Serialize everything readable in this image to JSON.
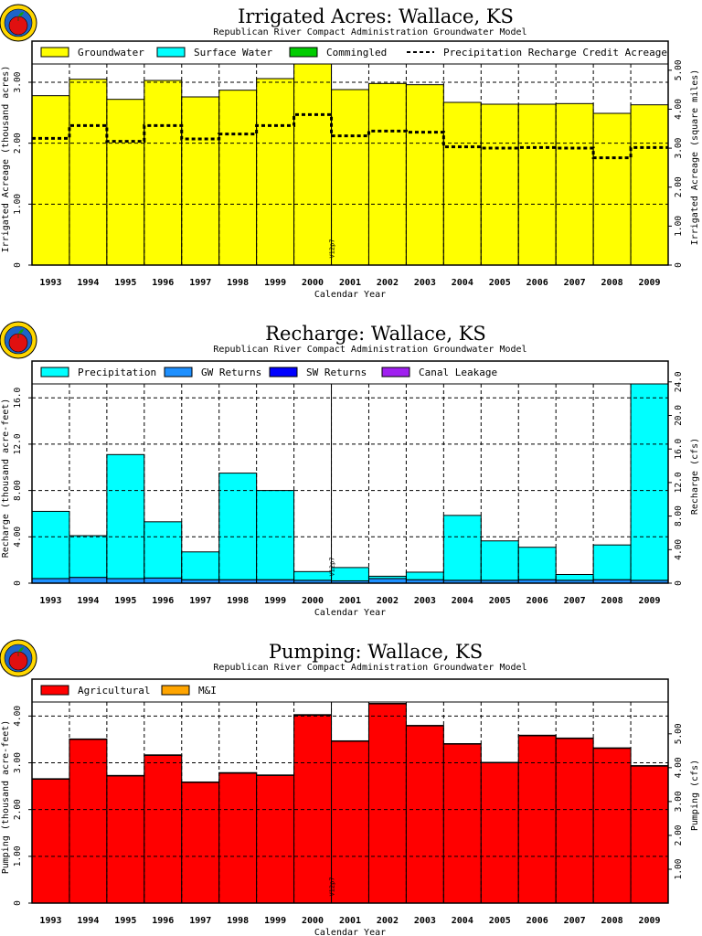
{
  "years": [
    "1993",
    "1994",
    "1995",
    "1996",
    "1997",
    "1998",
    "1999",
    "2000",
    "2001",
    "2002",
    "2003",
    "2004",
    "2005",
    "2006",
    "2007",
    "2008",
    "2009"
  ],
  "xlabel": "Calendar Year",
  "subtitle": "Republican River Compact Administration Groundwater Model",
  "annotation": "V12p7",
  "chart_data": [
    {
      "type": "bar",
      "title": "Irrigated Acres: Wallace, KS",
      "subtitle": "Republican River Compact Administration Groundwater Model",
      "xlabel": "Calendar Year",
      "ylabel": "Irrigated Acreage (thousand acres)",
      "y2label": "Irrigated Acreage (square miles)",
      "ylim": [
        0,
        3.3
      ],
      "yticks": [
        "0",
        "1.00",
        "2.00",
        "3.00"
      ],
      "y2lim": [
        0,
        5.16
      ],
      "y2ticks": [
        "0",
        "1.00",
        "2.00",
        "3.00",
        "4.00",
        "5.00"
      ],
      "legend": [
        {
          "name": "Groundwater",
          "color": "#ffff00",
          "kind": "box"
        },
        {
          "name": "Surface Water",
          "color": "#00ffff",
          "kind": "box"
        },
        {
          "name": "Commingled",
          "color": "#00cc00",
          "kind": "box"
        },
        {
          "name": "Precipitation Recharge Credit Acreage",
          "color": "#000000",
          "kind": "dash"
        }
      ],
      "series": [
        {
          "name": "Groundwater",
          "color": "#ffff00",
          "values": [
            2.78,
            3.05,
            2.72,
            3.03,
            2.76,
            2.87,
            3.06,
            3.3,
            2.88,
            2.98,
            2.96,
            2.67,
            2.64,
            2.64,
            2.65,
            2.49,
            2.63
          ]
        },
        {
          "name": "Surface Water",
          "color": "#00ffff",
          "values": [
            0,
            0,
            0,
            0,
            0,
            0,
            0,
            0,
            0,
            0,
            0,
            0,
            0,
            0,
            0,
            0,
            0
          ]
        },
        {
          "name": "Commingled",
          "color": "#00cc00",
          "values": [
            0,
            0,
            0,
            0,
            0,
            0,
            0,
            0,
            0,
            0,
            0,
            0,
            0,
            0,
            0,
            0,
            0
          ]
        }
      ],
      "line_series": {
        "name": "Precipitation Recharge Credit Acreage",
        "values": [
          2.08,
          2.29,
          2.03,
          2.29,
          2.07,
          2.15,
          2.29,
          2.47,
          2.12,
          2.2,
          2.18,
          1.94,
          1.92,
          1.93,
          1.92,
          1.76,
          1.93
        ]
      }
    },
    {
      "type": "bar",
      "title": "Recharge: Wallace, KS",
      "subtitle": "Republican River Compact Administration Groundwater Model",
      "xlabel": "Calendar Year",
      "ylabel": "Recharge (thousand acre-feet)",
      "y2label": "Recharge (cfs)",
      "ylim": [
        0,
        17.2
      ],
      "yticks": [
        "0",
        "4.00",
        "8.00",
        "12.0",
        "16.0"
      ],
      "y2lim": [
        0,
        23.76
      ],
      "y2ticks": [
        "0",
        "4.00",
        "8.00",
        "12.0",
        "16.0",
        "20.0",
        "24.0"
      ],
      "legend": [
        {
          "name": "Precipitation",
          "color": "#00ffff",
          "kind": "box"
        },
        {
          "name": "GW Returns",
          "color": "#1e90ff",
          "kind": "box"
        },
        {
          "name": "SW Returns",
          "color": "#0000ff",
          "kind": "box"
        },
        {
          "name": "Canal Leakage",
          "color": "#a020f0",
          "kind": "box"
        }
      ],
      "series": [
        {
          "name": "GW Returns",
          "color": "#1e90ff",
          "values": [
            0.4,
            0.5,
            0.4,
            0.45,
            0.3,
            0.3,
            0.3,
            0.25,
            0.2,
            0.4,
            0.3,
            0.25,
            0.25,
            0.3,
            0.25,
            0.3,
            0.25
          ]
        },
        {
          "name": "SW Returns",
          "color": "#0000ff",
          "values": [
            0,
            0,
            0,
            0,
            0,
            0,
            0,
            0,
            0,
            0,
            0,
            0,
            0,
            0,
            0,
            0,
            0
          ]
        },
        {
          "name": "Canal Leakage",
          "color": "#a020f0",
          "values": [
            0,
            0,
            0,
            0,
            0,
            0,
            0,
            0,
            0,
            0,
            0,
            0,
            0,
            0,
            0,
            0,
            0
          ]
        },
        {
          "name": "Precipitation",
          "color": "#00ffff",
          "values": [
            5.8,
            3.6,
            10.7,
            4.85,
            2.4,
            9.2,
            7.7,
            0.75,
            1.15,
            0.2,
            0.65,
            5.6,
            3.4,
            2.8,
            0.5,
            3.0,
            17.0
          ]
        }
      ]
    },
    {
      "type": "bar",
      "title": "Pumping: Wallace, KS",
      "subtitle": "Republican River Compact Administration Groundwater Model",
      "xlabel": "Calendar Year",
      "ylabel": "Pumping (thousand acre-feet)",
      "y2label": "Pumping (cfs)",
      "ylim": [
        0,
        4.3
      ],
      "yticks": [
        "0",
        "1.00",
        "2.00",
        "3.00",
        "4.00"
      ],
      "y2lim": [
        0,
        5.94
      ],
      "y2ticks": [
        "1.00",
        "2.00",
        "3.00",
        "4.00",
        "5.00"
      ],
      "legend": [
        {
          "name": "Agricultural",
          "color": "#ff0000",
          "kind": "box"
        },
        {
          "name": "M&I",
          "color": "#ffa500",
          "kind": "box"
        }
      ],
      "series": [
        {
          "name": "Agricultural",
          "color": "#ff0000",
          "values": [
            2.65,
            3.5,
            2.72,
            3.16,
            2.58,
            2.78,
            2.73,
            4.02,
            3.46,
            4.26,
            3.79,
            3.4,
            3.0,
            3.58,
            3.52,
            3.31,
            2.93
          ]
        },
        {
          "name": "M&I",
          "color": "#ffa500",
          "values": [
            0.01,
            0.01,
            0.01,
            0.01,
            0.01,
            0.01,
            0.01,
            0.01,
            0.01,
            0.01,
            0.01,
            0.01,
            0.01,
            0.01,
            0.01,
            0.01,
            0.01
          ]
        }
      ]
    }
  ]
}
